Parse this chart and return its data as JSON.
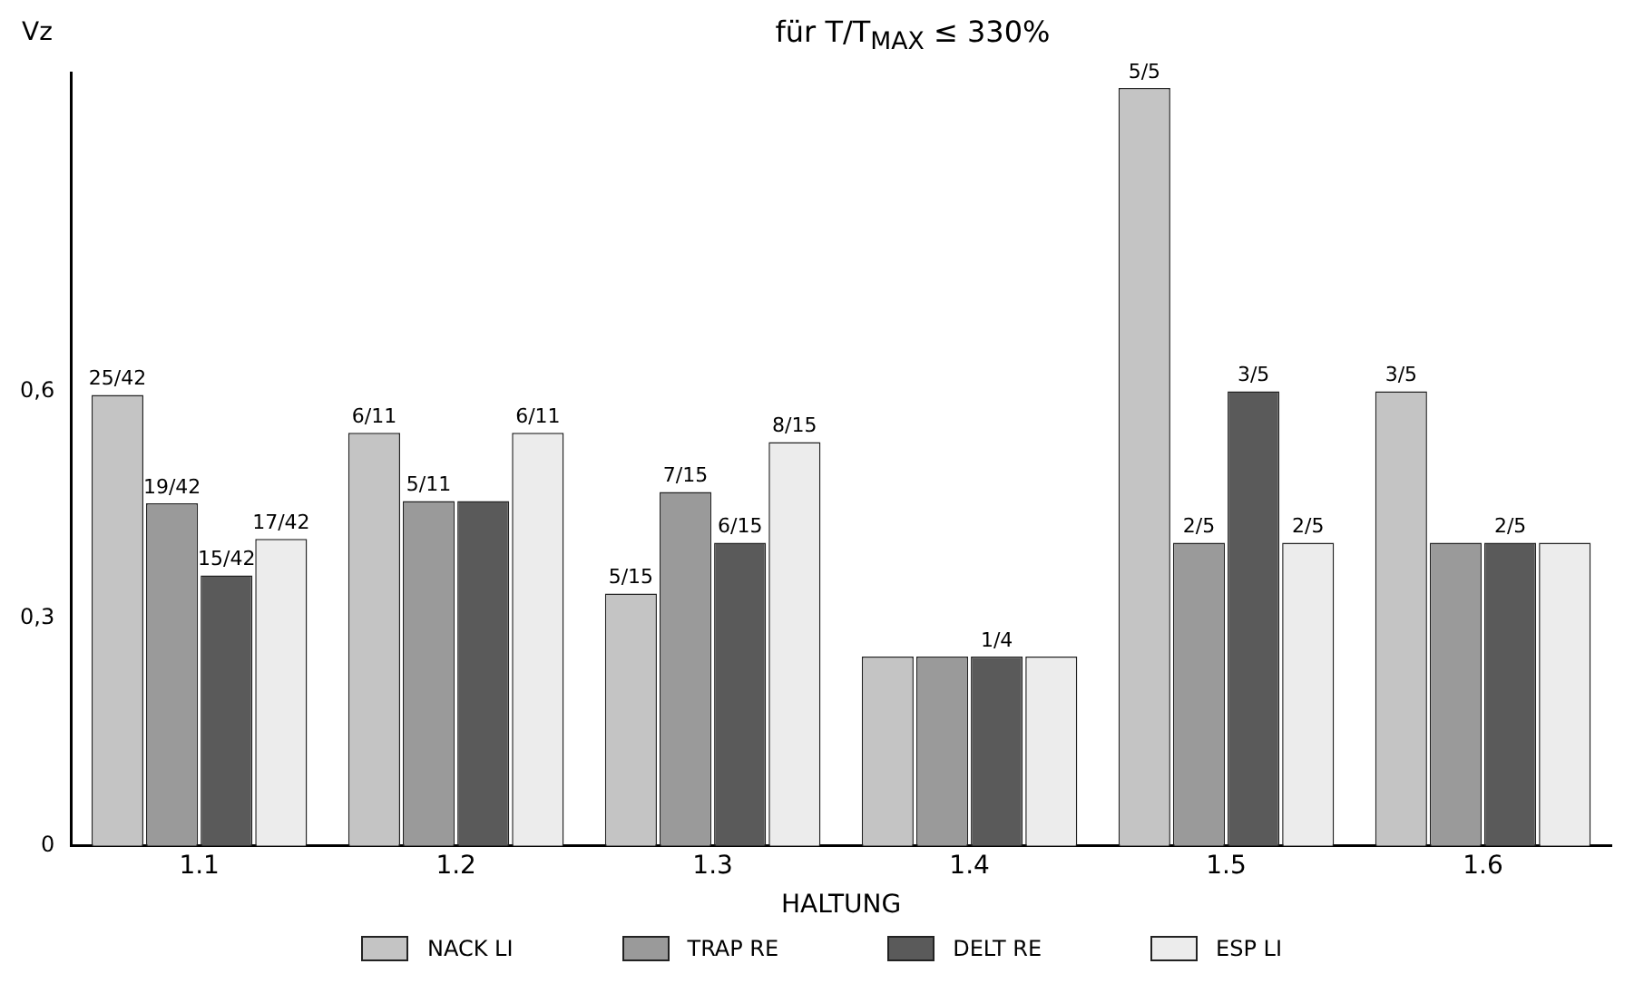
{
  "chart_data": {
    "type": "bar",
    "title": "für T/T$_{MAX}$ ≤ 330%",
    "xlabel": "HALTUNG",
    "ylabel": "Vz",
    "categories": [
      "1.1",
      "1.2",
      "1.3",
      "1.4",
      "1.5",
      "1.6"
    ],
    "series": [
      {
        "name": "NACK LI",
        "color": "#c4c4c4",
        "values": [
          0.595,
          0.545,
          0.333,
          0.25,
          1.0,
          0.6
        ],
        "value_labels": [
          "25/42",
          "6/11",
          "5/15",
          null,
          "5/5",
          "3/5"
        ]
      },
      {
        "name": "TRAP RE",
        "color": "#9a9a9a",
        "values": [
          0.452,
          0.455,
          0.467,
          0.25,
          0.4,
          0.4
        ],
        "value_labels": [
          "19/42",
          "5/11",
          "7/15",
          null,
          "2/5",
          null
        ]
      },
      {
        "name": "DELT RE",
        "color": "#5a5a5a",
        "values": [
          0.357,
          0.455,
          0.4,
          0.25,
          0.6,
          0.4
        ],
        "value_labels": [
          "15/42",
          null,
          "6/15",
          "1/4",
          "3/5",
          "2/5"
        ]
      },
      {
        "name": "ESP LI",
        "color": "#ececec",
        "values": [
          0.405,
          0.545,
          0.533,
          0.25,
          0.4,
          0.4
        ],
        "value_labels": [
          "17/42",
          "6/11",
          "8/15",
          null,
          "2/5",
          null
        ]
      }
    ],
    "ylim": [
      0,
      1.02
    ],
    "yticks": [
      0,
      {
        "value": 0.3,
        "label": "0,3"
      },
      {
        "value": 0.6,
        "label": "0,6"
      }
    ],
    "grid": false,
    "legend": "bottom"
  }
}
